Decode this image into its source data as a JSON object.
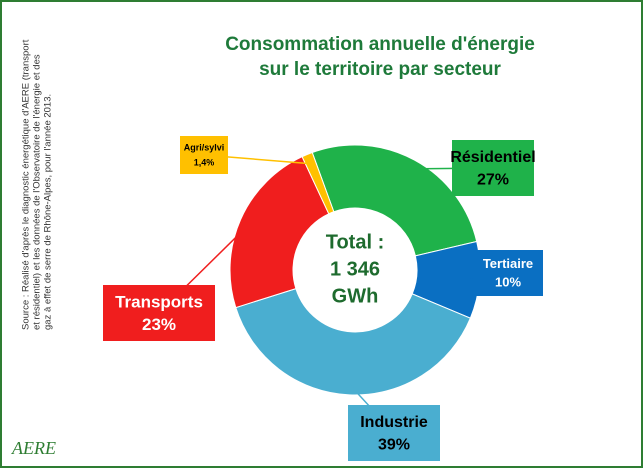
{
  "chart_data": {
    "type": "pie",
    "title": [
      "Consommation annuelle d'énergie",
      "sur le territoire par secteur"
    ],
    "categories": [
      "Résidentiel",
      "Tertiaire",
      "Industrie",
      "Transports",
      "Agri/sylvi"
    ],
    "values": [
      27,
      10,
      39,
      23,
      1.4
    ],
    "value_labels": [
      "27%",
      "10%",
      "39%",
      "23%",
      "1,4%"
    ],
    "colors": [
      "#1fb24a",
      "#0a6fc2",
      "#4aaed0",
      "#f01e1e",
      "#ffc000"
    ],
    "center_text": [
      "Total :",
      "1 346",
      "GWh"
    ],
    "source": [
      "Source : Réalisé d'après le diagnostic énergétique d'AERE (transport",
      "et résidentiel) et les données de l'Observatoire de l'énergie et des",
      "gaz à effet de serre de Rhône-Alpes, pour l'année 2013."
    ],
    "logo": "AERE"
  }
}
